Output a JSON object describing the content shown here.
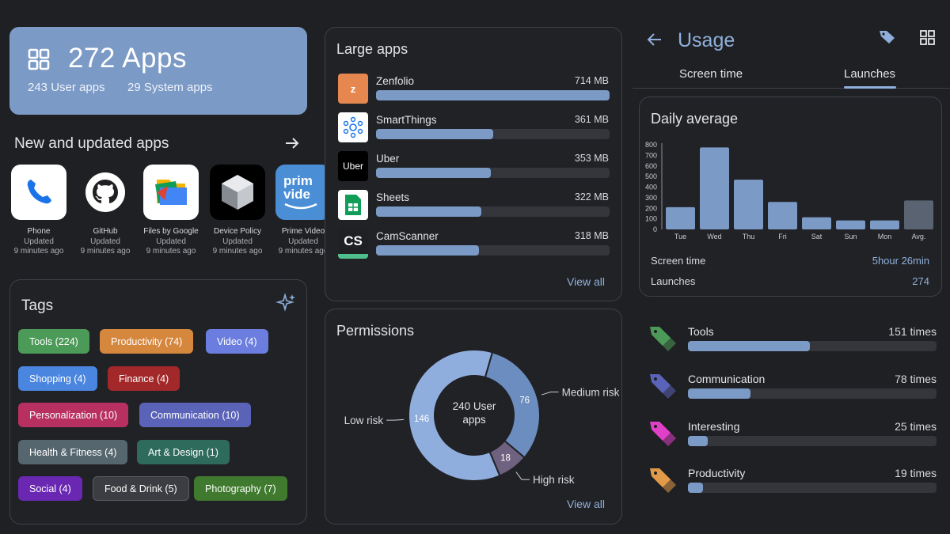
{
  "summary": {
    "title": "272 Apps",
    "user_apps": "243 User apps",
    "system_apps": "29 System apps"
  },
  "new_apps": {
    "title": "New and updated apps",
    "apps": [
      {
        "name": "Phone",
        "status": "Updated",
        "time": "9 minutes ago"
      },
      {
        "name": "GitHub",
        "status": "Updated",
        "time": "9 minutes ago"
      },
      {
        "name": "Files by Google",
        "status": "Updated",
        "time": "9 minutes ago"
      },
      {
        "name": "Device Policy",
        "status": "Updated",
        "time": "9 minutes ago"
      },
      {
        "name": "Prime Video",
        "status": "Updated",
        "time": "9 minutes ago"
      }
    ]
  },
  "tags": {
    "title": "Tags",
    "items": [
      {
        "label": "Tools (224)",
        "color": "#4c9a58"
      },
      {
        "label": "Productivity (74)",
        "color": "#d6873e"
      },
      {
        "label": "Video (4)",
        "color": "#6b7ee0"
      },
      {
        "label": "Shopping (4)",
        "color": "#4a86e0"
      },
      {
        "label": "Finance (4)",
        "color": "#a3282a"
      },
      {
        "label": "Personalization (10)",
        "color": "#b83060"
      },
      {
        "label": "Communication (10)",
        "color": "#5a63b8"
      },
      {
        "label": "Health & Fitness (4)",
        "color": "#56666f"
      },
      {
        "label": "Art & Design (1)",
        "color": "#2e6b5c"
      },
      {
        "label": "Social (4)",
        "color": "#6a28b2"
      },
      {
        "label": "Food & Drink (5)",
        "color": "#3c3d42"
      },
      {
        "label": "Photography (7)",
        "color": "#3f7a2e"
      }
    ]
  },
  "large_apps": {
    "title": "Large apps",
    "view_all": "View all",
    "apps": [
      {
        "name": "Zenfolio",
        "size": "714 MB",
        "fraction": 1.0,
        "icon_letter": "z"
      },
      {
        "name": "SmartThings",
        "size": "361 MB",
        "fraction": 0.5,
        "icon_letter": ""
      },
      {
        "name": "Uber",
        "size": "353 MB",
        "fraction": 0.49,
        "icon_letter": "Uber"
      },
      {
        "name": "Sheets",
        "size": "322 MB",
        "fraction": 0.45,
        "icon_letter": ""
      },
      {
        "name": "CamScanner",
        "size": "318 MB",
        "fraction": 0.44,
        "icon_letter": "CS"
      }
    ]
  },
  "permissions": {
    "title": "Permissions",
    "center_label": "240 User apps",
    "view_all": "View all",
    "segments": [
      {
        "name": "Medium risk",
        "value": 76,
        "color": "#6c8dbf"
      },
      {
        "name": "High risk",
        "value": 18,
        "color": "#6f6180"
      },
      {
        "name": "Low risk",
        "value": 146,
        "color": "#8faede"
      }
    ]
  },
  "usage": {
    "title": "Usage",
    "tabs": [
      "Screen time",
      "Launches"
    ],
    "active_tab": "Launches",
    "daily_title": "Daily average",
    "screen_time_label": "Screen time",
    "screen_time_value": "5hour 26min",
    "launches_label": "Launches",
    "launches_value": "274",
    "categories": [
      {
        "name": "Tools",
        "count": "151 times",
        "fraction": 0.49,
        "color": "#4c9a58"
      },
      {
        "name": "Communication",
        "count": "78 times",
        "fraction": 0.25,
        "color": "#5a63b8"
      },
      {
        "name": "Interesting",
        "count": "25 times",
        "fraction": 0.08,
        "color": "#e040c8"
      },
      {
        "name": "Productivity",
        "count": "19 times",
        "fraction": 0.06,
        "color": "#e09a48"
      }
    ]
  },
  "chart_data": {
    "type": "bar",
    "categories": [
      "Tue",
      "Wed",
      "Thu",
      "Fri",
      "Sat",
      "Sun",
      "Mon",
      "Avg."
    ],
    "values": [
      210,
      775,
      470,
      260,
      115,
      85,
      85,
      274
    ],
    "ylim": [
      0,
      800
    ],
    "yticks": [
      0,
      100,
      200,
      300,
      400,
      500,
      600,
      700,
      800
    ],
    "bar_color": "#7b9ac6",
    "avg_color": "#5a6372",
    "grid": false
  }
}
